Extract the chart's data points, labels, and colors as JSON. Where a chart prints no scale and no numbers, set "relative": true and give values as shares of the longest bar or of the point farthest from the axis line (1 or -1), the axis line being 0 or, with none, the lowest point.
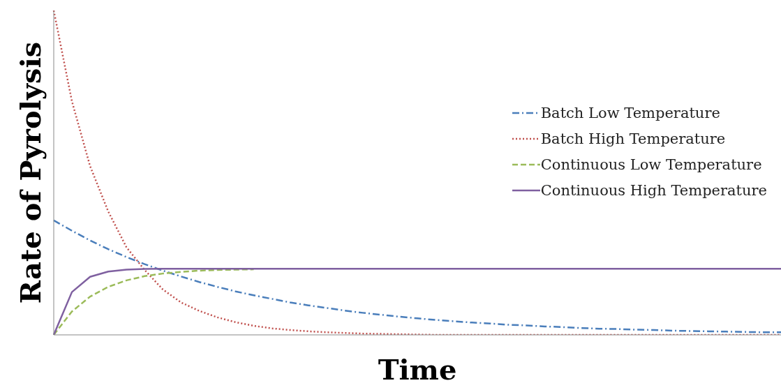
{
  "chart_data": {
    "type": "line",
    "relative": true,
    "xlabel": "Time",
    "ylabel": "Rate of Pyrolysis",
    "legend": "right",
    "categories": [
      null,
      null,
      null,
      null,
      null,
      null,
      null,
      null,
      null,
      null,
      null,
      null,
      null,
      null,
      null,
      null,
      null,
      null,
      null,
      null,
      null,
      null,
      null,
      null,
      null,
      null,
      null,
      null,
      null,
      null,
      null,
      null,
      null,
      null,
      null,
      null,
      null,
      null,
      null,
      null,
      null
    ],
    "series": [
      {
        "name": "Batch Low Temperature",
        "color": "#4a7ebb",
        "line_style": "dashdot",
        "values": [
          0.353,
          0.321,
          0.291,
          0.264,
          0.24,
          0.218,
          0.198,
          0.18,
          0.163,
          0.148,
          0.134,
          0.122,
          0.111,
          0.1,
          0.091,
          0.083,
          0.075,
          0.068,
          0.062,
          0.056,
          0.051,
          0.046,
          0.042,
          0.038,
          0.035,
          0.031,
          0.029,
          0.026,
          0.024,
          0.021,
          0.019,
          0.018,
          0.016,
          0.015,
          0.013,
          0.012,
          0.011,
          0.01,
          0.009,
          0.008,
          0.008
        ]
      },
      {
        "name": "Batch High Temperature",
        "color": "#c0504d",
        "line_style": "dotted",
        "values": [
          1,
          0.72,
          0.52,
          0.38,
          0.27,
          0.2,
          0.14,
          0.1,
          0.074,
          0.054,
          0.039,
          0.028,
          0.02,
          0.015,
          0.011,
          0.008,
          0.006,
          0.004,
          0.003,
          0.002,
          0.001,
          0,
          0,
          0,
          0,
          0,
          0,
          0,
          0,
          0,
          0,
          0,
          0,
          0,
          0,
          0,
          0,
          0,
          0,
          0,
          0
        ]
      },
      {
        "name": "Continuous Low Temperature",
        "color": "#9bbb59",
        "line_style": "dashed",
        "values": [
          0,
          0.072,
          0.118,
          0.148,
          0.168,
          0.181,
          0.189,
          0.194,
          0.198,
          0.2,
          0.201,
          0.202,
          null,
          null,
          null,
          null,
          null,
          null,
          null,
          null,
          null,
          null,
          null,
          null,
          null,
          null,
          null,
          null,
          null,
          null,
          null,
          null,
          null,
          null,
          null,
          null,
          null,
          null,
          null,
          null,
          null
        ]
      },
      {
        "name": "Continuous High Temperature",
        "color": "#7f60a0",
        "line_style": "solid",
        "values": [
          0,
          0.132,
          0.179,
          0.195,
          0.201,
          0.203,
          0.204,
          0.204,
          0.204,
          0.204,
          0.204,
          0.204,
          0.204,
          0.204,
          0.204,
          0.204,
          0.204,
          0.204,
          0.204,
          0.204,
          0.204,
          0.204,
          0.204,
          0.204,
          0.204,
          0.204,
          0.204,
          0.204,
          0.204,
          0.204,
          0.204,
          0.204,
          0.204,
          0.204,
          0.204,
          0.204,
          0.204,
          0.204,
          0.204,
          0.204,
          0.204
        ]
      }
    ]
  }
}
